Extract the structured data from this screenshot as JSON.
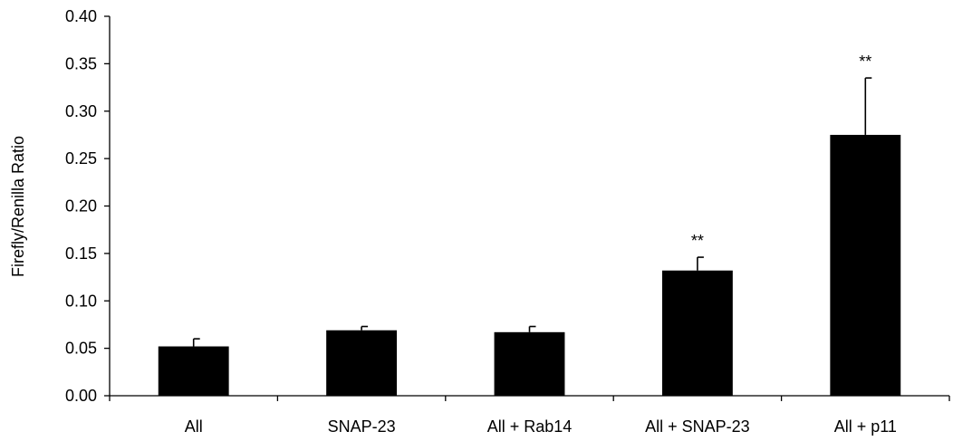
{
  "chart_data": {
    "type": "bar",
    "title": "",
    "xlabel": "",
    "ylabel": "Firefly/Renilla Ratio",
    "ylim": [
      0,
      0.4
    ],
    "yticks": [
      "0.00",
      "0.05",
      "0.10",
      "0.15",
      "0.20",
      "0.25",
      "0.30",
      "0.35",
      "0.40"
    ],
    "categories": [
      "All",
      "SNAP-23",
      "All + Rab14",
      "All + SNAP-23",
      "All + p11"
    ],
    "values": [
      0.052,
      0.069,
      0.067,
      0.132,
      0.275
    ],
    "errors": [
      0.008,
      0.004,
      0.006,
      0.014,
      0.06
    ],
    "significance": [
      "",
      "",
      "",
      "**",
      "**"
    ],
    "grid": false,
    "legend": "none",
    "bar_color": "#000000"
  }
}
